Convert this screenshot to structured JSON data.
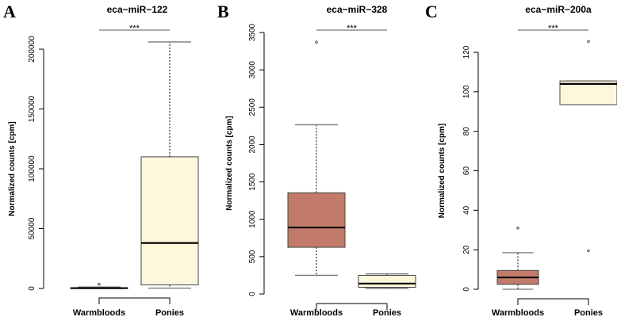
{
  "chart_data": [
    {
      "type": "boxplot",
      "panel_label": "A",
      "title": "eca−miR−122",
      "ylabel": "Normalized counts [cpm]",
      "ylim": [
        0,
        200000
      ],
      "yticks": [
        0,
        50000,
        100000,
        150000,
        200000
      ],
      "ytick_labels": [
        "0",
        "50000",
        "100000",
        "150000",
        "200000"
      ],
      "significance": "***",
      "categories": [
        "Warmbloods",
        "Ponies"
      ],
      "series": [
        {
          "name": "Warmbloods",
          "color": "#c27b6a",
          "whisker_low": 0,
          "q1": 100,
          "median": 300,
          "q3": 600,
          "whisker_high": 1200,
          "outliers": [
            3500
          ]
        },
        {
          "name": "Ponies",
          "color": "#fdf8dc",
          "whisker_low": 300,
          "q1": 3000,
          "median": 38000,
          "q3": 110000,
          "whisker_high": 206000,
          "outliers": []
        }
      ]
    },
    {
      "type": "boxplot",
      "panel_label": "B",
      "title": "eca−miR−328",
      "ylabel": "Normalized counts [cpm]",
      "ylim": [
        0,
        3500
      ],
      "yticks": [
        0,
        500,
        1000,
        1500,
        2000,
        2500,
        3000,
        3500
      ],
      "ytick_labels": [
        "0",
        "500",
        "1000",
        "1500",
        "2000",
        "2500",
        "3000",
        "3500"
      ],
      "significance": "***",
      "categories": [
        "Warmbloods",
        "Ponies"
      ],
      "series": [
        {
          "name": "Warmbloods",
          "color": "#c27b6a",
          "whisker_low": 250,
          "q1": 625,
          "median": 890,
          "q3": 1355,
          "whisker_high": 2265,
          "outliers": [
            3370
          ]
        },
        {
          "name": "Ponies",
          "color": "#fdf8dc",
          "whisker_low": 75,
          "q1": 90,
          "median": 140,
          "q3": 250,
          "whisker_high": 270,
          "outliers": []
        }
      ]
    },
    {
      "type": "boxplot",
      "panel_label": "C",
      "title": "eca−miR−200a",
      "ylabel": "Normalized counts [cpm]",
      "ylim": [
        0,
        120
      ],
      "yticks": [
        0,
        20,
        40,
        60,
        80,
        100,
        120
      ],
      "ytick_labels": [
        "0",
        "20",
        "40",
        "60",
        "80",
        "100",
        "120"
      ],
      "significance": "***",
      "categories": [
        "Warmbloods",
        "Ponies"
      ],
      "series": [
        {
          "name": "Warmbloods",
          "color": "#c27b6a",
          "whisker_low": 0,
          "q1": 2.5,
          "median": 6,
          "q3": 9.5,
          "whisker_high": 18.5,
          "outliers": [
            31
          ]
        },
        {
          "name": "Ponies",
          "color": "#fdf8dc",
          "whisker_low": 93.5,
          "q1": 93.5,
          "median": 104,
          "q3": 105.5,
          "whisker_high": 105.5,
          "outliers": [
            125.5,
            19.5
          ]
        }
      ]
    }
  ]
}
